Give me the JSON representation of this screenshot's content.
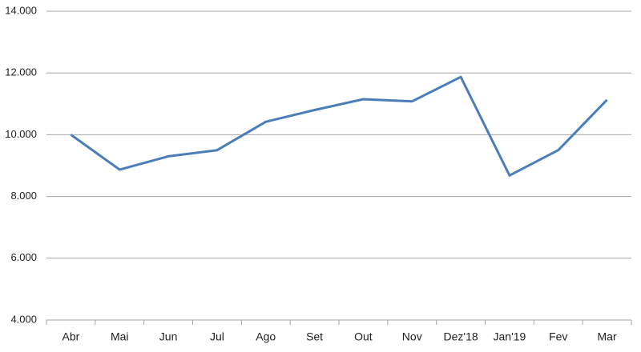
{
  "chart_data": {
    "type": "line",
    "categories": [
      "Abr",
      "Mai",
      "Jun",
      "Jul",
      "Ago",
      "Set",
      "Out",
      "Nov",
      "Dez'18",
      "Jan'19",
      "Fev",
      "Mar"
    ],
    "values": [
      10000,
      8870,
      9300,
      9500,
      10420,
      10800,
      11150,
      11080,
      11870,
      8680,
      9500,
      11130
    ],
    "color": "#4a7ebb",
    "ylim": [
      4000,
      14000
    ],
    "yticks": [
      {
        "value": 4000,
        "label": "4.000"
      },
      {
        "value": 6000,
        "label": "6.000"
      },
      {
        "value": 8000,
        "label": "8.000"
      },
      {
        "value": 10000,
        "label": "10.000"
      },
      {
        "value": 12000,
        "label": "12.000"
      },
      {
        "value": 14000,
        "label": "14.000"
      }
    ],
    "grid": true
  }
}
